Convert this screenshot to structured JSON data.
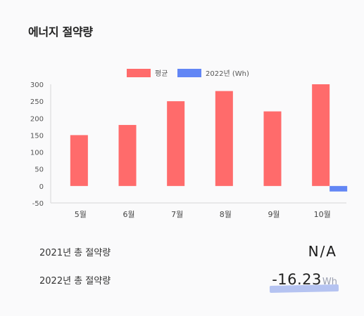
{
  "card": {
    "title": "에너지 절약량"
  },
  "chart_data": {
    "type": "bar",
    "categories": [
      "5월",
      "6월",
      "7월",
      "8월",
      "9월",
      "10월"
    ],
    "series": [
      {
        "name": "평균",
        "color": "#ff6b6b",
        "values": [
          150,
          180,
          250,
          280,
          220,
          300
        ]
      },
      {
        "name": "2022년 (Wh)",
        "color": "#6286f5",
        "values": [
          null,
          null,
          null,
          null,
          null,
          -16.23
        ]
      }
    ],
    "ylim": [
      -50,
      300
    ],
    "yticks": [
      300,
      250,
      200,
      150,
      100,
      50,
      0,
      -50
    ],
    "legend_position": "top-center",
    "grid": false
  },
  "summary": {
    "row2021": {
      "label": "2021년 총 절약량",
      "value": "N/A"
    },
    "row2022": {
      "label": "2022년 총 절약량",
      "value": "-16.23",
      "unit": "Wh"
    }
  }
}
